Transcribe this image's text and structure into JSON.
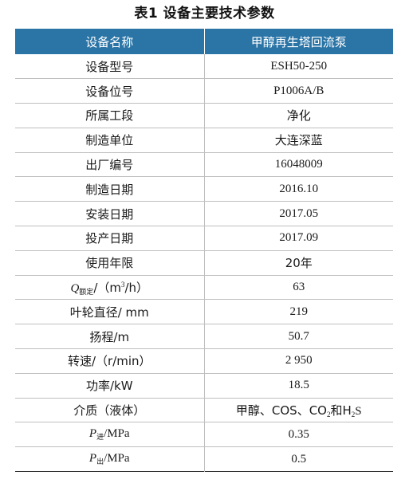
{
  "caption": "表1 设备主要技术参数",
  "header": {
    "col1": "设备名称",
    "col2": "甲醇再生塔回流泵"
  },
  "rows": [
    {
      "name": "设备型号",
      "value": "ESH50-250"
    },
    {
      "name": "设备位号",
      "value": "P1006A/B"
    },
    {
      "name": "所属工段",
      "value": "净化"
    },
    {
      "name": "制造单位",
      "value": "大连深蓝"
    },
    {
      "name": "出厂编号",
      "value": "16048009"
    },
    {
      "name": "制造日期",
      "value": "2016.10"
    },
    {
      "name": "安装日期",
      "value": "2017.05"
    },
    {
      "name": "投产日期",
      "value": "2017.09"
    },
    {
      "name": "使用年限",
      "value": "20年"
    },
    {
      "name_symbol": "Q",
      "name_sub": "额定",
      "name_rest_a": "/（m",
      "name_sup": "3",
      "name_rest_b": "/h）",
      "value": "63"
    },
    {
      "name": "叶轮直径/ mm",
      "value": "219"
    },
    {
      "name": "扬程/m",
      "value": "50.7"
    },
    {
      "name": "转速/（r/min）",
      "value": "2 950"
    },
    {
      "name": "功率/kW",
      "value": "18.5"
    },
    {
      "name": "介质（液体）",
      "value_a": "甲醇、COS、CO",
      "value_sub1": "2",
      "value_b": "和H",
      "value_sub2": "2",
      "value_c": "S"
    },
    {
      "name_symbol": "P",
      "name_sub": "进",
      "name_rest_a": "/MPa",
      "value": "0.35"
    },
    {
      "name_symbol": "P",
      "name_sub": "出",
      "name_rest_a": "/MPa",
      "value": "0.5"
    }
  ]
}
